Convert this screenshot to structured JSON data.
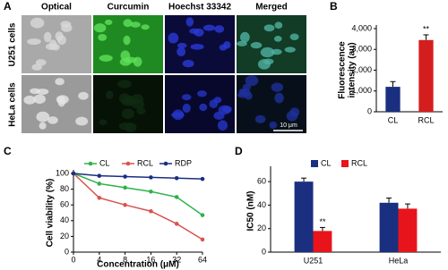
{
  "panel_a": {
    "panel": "A",
    "columns": [
      "Optical",
      "Curcumin",
      "Hoechst 33342",
      "Merged"
    ],
    "rows": [
      "U251 cells",
      "HeLa cells"
    ],
    "scale_bar": "10 μm"
  },
  "chart_data": [
    {
      "type": "bar",
      "panel": "B",
      "categories": [
        "CL",
        "RCL"
      ],
      "values": [
        1200,
        3450
      ],
      "errors": [
        250,
        250
      ],
      "colors": [
        "#1a2f80",
        "#d41e1e"
      ],
      "ylabel": [
        "Fluorescence",
        "intensity (au)"
      ],
      "ylim": [
        0,
        4000
      ],
      "yticks": [
        0,
        {
          "value": 1000,
          "label": "1,000"
        },
        {
          "value": 2000,
          "label": "2,000"
        },
        {
          "value": 3000,
          "label": "3,000"
        },
        {
          "value": 4000,
          "label": "4,000"
        }
      ],
      "annotations": [
        {
          "text": "**",
          "category": "RCL"
        }
      ]
    },
    {
      "type": "line",
      "panel": "C",
      "categories": [
        "0",
        "4",
        "8",
        "16",
        "32",
        "64"
      ],
      "series": [
        {
          "name": "CL",
          "color": "#2eb24a",
          "values": [
            100,
            87,
            82,
            77,
            70,
            47
          ]
        },
        {
          "name": "RCL",
          "color": "#d9534f",
          "values": [
            100,
            69,
            60,
            52,
            36,
            16
          ]
        },
        {
          "name": "RDP",
          "color": "#1a2f80",
          "values": [
            100,
            97,
            96,
            95,
            94,
            93
          ]
        }
      ],
      "ylabel": "Cell viability (%)",
      "xlabel": "Concentration (μM)",
      "ylim": [
        0,
        100
      ],
      "yticks": [
        0,
        20,
        40,
        60,
        80,
        100
      ]
    },
    {
      "type": "groupbar",
      "panel": "D",
      "categories": [
        "U251",
        "HeLa"
      ],
      "series": [
        {
          "name": "CL",
          "color": "#1a2f80",
          "values": [
            60,
            42
          ],
          "errors": [
            3,
            4
          ]
        },
        {
          "name": "RCL",
          "color": "#e8141b",
          "values": [
            18,
            37
          ],
          "errors": [
            3,
            4
          ]
        }
      ],
      "ylabel": "IC50 (nM)",
      "ylim": [
        0,
        70
      ],
      "yticks": [
        0,
        20,
        40,
        60
      ],
      "annotations": [
        {
          "text": "**",
          "category": "U251",
          "series": "RCL"
        }
      ]
    }
  ]
}
